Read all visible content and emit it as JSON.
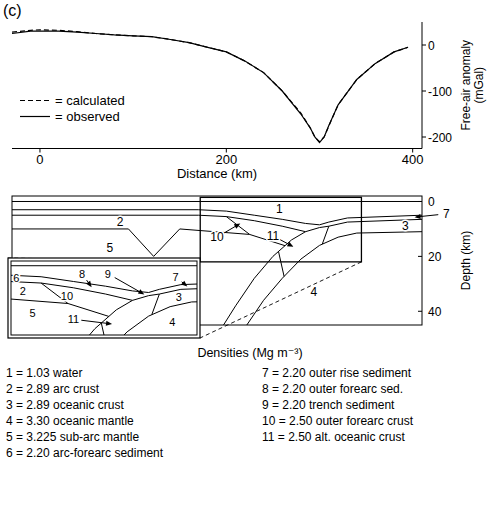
{
  "panel_label": "(c)",
  "chart_data": [
    {
      "type": "line",
      "xlabel": "Distance (km)",
      "ylabel": "Free-air anomaly (mGal)",
      "x": [
        -30,
        -10,
        0,
        20,
        40,
        60,
        80,
        100,
        120,
        140,
        160,
        180,
        200,
        220,
        240,
        260,
        280,
        290,
        295,
        300,
        305,
        310,
        320,
        340,
        360,
        380,
        395
      ],
      "series": [
        {
          "name": "= calculated",
          "color": "#000000",
          "line_style": "dashed",
          "values": [
            28,
            32,
            33,
            32,
            29,
            25,
            22,
            20,
            18,
            12,
            5,
            -5,
            -15,
            -35,
            -60,
            -100,
            -148,
            -180,
            -200,
            -210,
            -200,
            -176,
            -130,
            -75,
            -40,
            -15,
            -5
          ]
        },
        {
          "name": "= observed",
          "color": "#000000",
          "line_style": "solid",
          "values": [
            25,
            30,
            30,
            30,
            28,
            25,
            22,
            20,
            18,
            12,
            5,
            -5,
            -15,
            -35,
            -60,
            -100,
            -150,
            -180,
            -200,
            -212,
            -200,
            -175,
            -130,
            -75,
            -40,
            -15,
            -5
          ]
        }
      ],
      "xlim": [
        -30,
        410
      ],
      "xticks": [
        0,
        200,
        400
      ],
      "ylim": [
        -225,
        50
      ],
      "yticks": [
        0,
        -100,
        -200
      ],
      "legend": "lower left"
    },
    {
      "type": "section",
      "ylabel": "Depth (km)",
      "xlim": [
        -30,
        410
      ],
      "ylim": [
        -2,
        45
      ],
      "yticks": [
        0,
        20,
        40
      ],
      "tick_labels": "y",
      "boundaries": [
        [
          [
            -30,
            0
          ],
          [
            410,
            0
          ]
        ],
        [
          [
            -30,
            3
          ],
          [
            170,
            3
          ],
          [
            200,
            3.5
          ],
          [
            230,
            5
          ],
          [
            260,
            6.5
          ],
          [
            285,
            8
          ],
          [
            300,
            8.5
          ],
          [
            310,
            7.5
          ],
          [
            330,
            6
          ],
          [
            410,
            5
          ]
        ],
        [
          [
            -30,
            5
          ],
          [
            170,
            5
          ],
          [
            200,
            5.5
          ],
          [
            230,
            7
          ],
          [
            260,
            9
          ],
          [
            285,
            11
          ]
        ],
        [
          [
            410,
            6.5
          ],
          [
            330,
            7.5
          ],
          [
            310,
            9
          ],
          [
            300,
            9.5
          ],
          [
            285,
            11
          ],
          [
            270,
            14
          ],
          [
            250,
            20
          ],
          [
            230,
            28
          ],
          [
            210,
            38
          ],
          [
            197,
            45
          ]
        ],
        [
          [
            410,
            11
          ],
          [
            340,
            11.5
          ],
          [
            320,
            13
          ],
          [
            300,
            16
          ],
          [
            280,
            21
          ],
          [
            260,
            28
          ],
          [
            240,
            36
          ],
          [
            222,
            45
          ]
        ],
        [
          [
            -30,
            10
          ],
          [
            95,
            10
          ],
          [
            122,
            20
          ],
          [
            150,
            10
          ],
          [
            225,
            12
          ],
          [
            263,
            16.1
          ]
        ],
        [
          [
            200,
            5.5
          ],
          [
            225,
            12
          ]
        ],
        [
          [
            310,
            9
          ],
          [
            303,
            15.5
          ]
        ],
        [
          [
            256,
            18.2
          ],
          [
            262,
            27.3
          ]
        ]
      ],
      "labels": [
        {
          "text": "1",
          "at": [
            257,
            2.5
          ]
        },
        {
          "text": "2",
          "at": [
            86,
            7.5
          ]
        },
        {
          "text": "5",
          "at": [
            75,
            17
          ]
        },
        {
          "text": "10",
          "at": [
            190,
            13
          ],
          "arrow_to": [
            215,
            8
          ]
        },
        {
          "text": "11",
          "at": [
            250,
            12.5
          ],
          "arrow_to": [
            272,
            16.5
          ]
        },
        {
          "text": "3",
          "at": [
            392,
            8.8
          ]
        },
        {
          "text": "7",
          "at": [
            436,
            4.5
          ],
          "arrow_to": [
            402,
            5.7
          ]
        },
        {
          "text": "4",
          "at": [
            294,
            33
          ]
        }
      ],
      "inset": {
        "xlim": [
          172,
          345
        ],
        "ylim": [
          -1.5,
          22
        ],
        "labels": [
          {
            "text": "6",
            "at": [
              177,
              4
            ]
          },
          {
            "text": "8",
            "at": [
              238,
              2.5
            ],
            "arrow_to": [
              247,
              6.8
            ]
          },
          {
            "text": "9",
            "at": [
              262,
              2.5
            ],
            "arrow_to": [
              296,
              9.1
            ]
          },
          {
            "text": "7",
            "at": [
              325,
              3.5
            ],
            "arrow_to": [
              336,
              6.6
            ]
          },
          {
            "text": "2",
            "at": [
              183,
              8
            ]
          },
          {
            "text": "10",
            "at": [
              224,
              9.5
            ]
          },
          {
            "text": "5",
            "at": [
              192,
              15
            ]
          },
          {
            "text": "11",
            "at": [
              230,
              17
            ],
            "arrow_to": [
              266,
              18.5
            ]
          },
          {
            "text": "3",
            "at": [
              328,
              9.8
            ]
          },
          {
            "text": "4",
            "at": [
              322,
              18
            ]
          }
        ]
      },
      "density_key": {
        "title": "Densities (Mg m⁻³)",
        "items": [
          "1 = 1.03 water",
          "2 = 2.89 arc crust",
          "3 = 2.89 oceanic crust",
          "4 = 3.30 oceanic mantle",
          "5 = 3.225 sub-arc mantle",
          "6 = 2.20 arc-forearc sediment",
          "7 = 2.20 outer rise sediment",
          "8 = 2.20 outer forearc sed.",
          "9 = 2.20 trench sediment",
          "10 = 2.50 outer forearc crust",
          "11 = 2.50 alt. oceanic crust"
        ]
      }
    }
  ]
}
